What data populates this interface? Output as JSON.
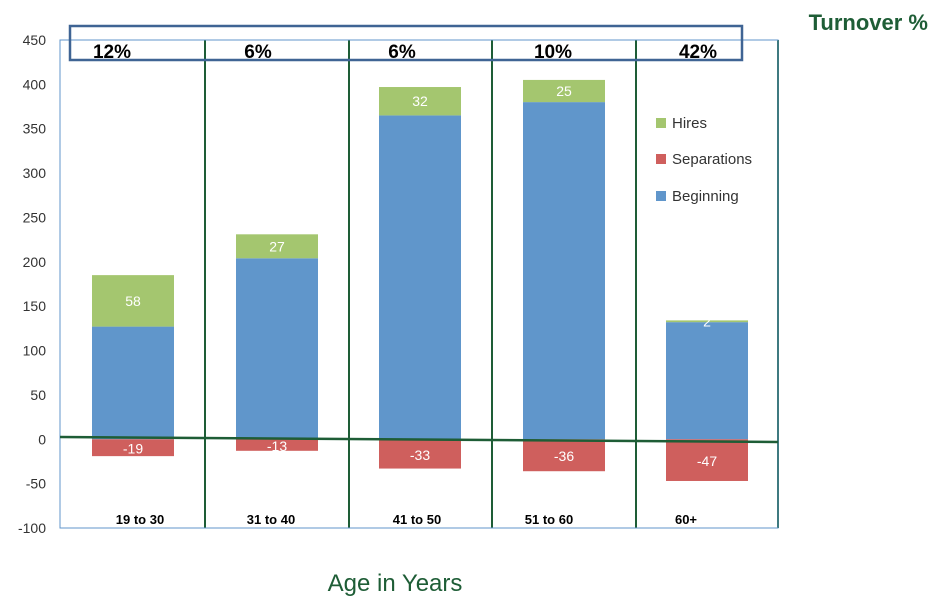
{
  "chart_data": {
    "type": "bar",
    "stacked": true,
    "categories": [
      "19 to 30",
      "31 to 40",
      "41 to 50",
      "51 to 60",
      "60+"
    ],
    "series": [
      {
        "name": "Beginning",
        "color": "#6096cb",
        "values": [
          127,
          204,
          365,
          380,
          132
        ]
      },
      {
        "name": "Hires",
        "color": "#a4c66f",
        "values": [
          58,
          27,
          32,
          25,
          2
        ]
      },
      {
        "name": "Separations",
        "color": "#cf5f5d",
        "values": [
          -19,
          -13,
          -33,
          -36,
          -47
        ]
      }
    ],
    "turnover_label": "Turnover %",
    "turnover_values": [
      "12%",
      "6%",
      "6%",
      "10%",
      "42%"
    ],
    "legend_order": [
      "Hires",
      "Separations",
      "Beginning"
    ],
    "legend_position": "right",
    "xlabel": "Age in Years",
    "ylabel": "",
    "ylim": [
      -100,
      450
    ],
    "yticks": [
      450,
      400,
      350,
      300,
      250,
      200,
      150,
      100,
      50,
      0,
      -50,
      -100
    ],
    "grid": false,
    "colors": {
      "divider": "#1e5d36",
      "turnover_box": "#3f6494",
      "zero_line": "#1e5d36",
      "plot_border": "#6096cb"
    }
  }
}
